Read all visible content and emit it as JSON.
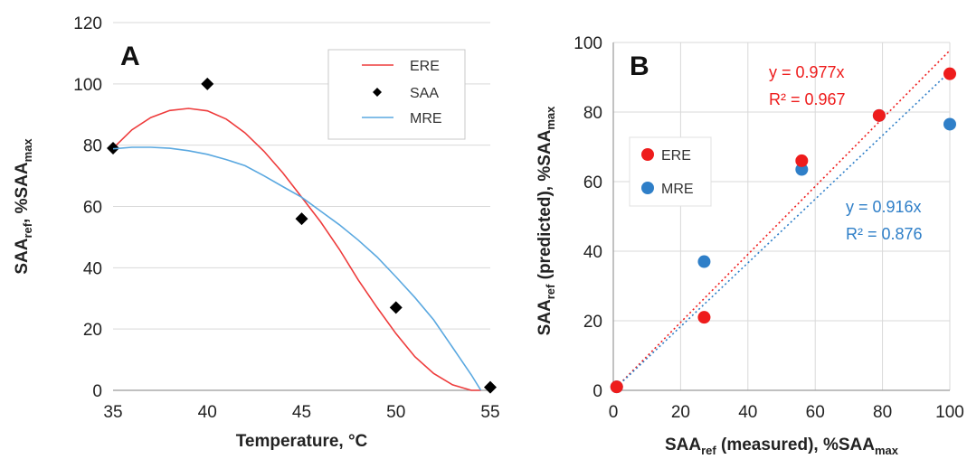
{
  "chart_data": [
    {
      "type": "line",
      "panel_label": "A",
      "xlabel": "Temperature, °C",
      "ylabel": {
        "main": "SAA",
        "sub": "ref",
        "tail": ", %SAA",
        "tail_sub": "max"
      },
      "xlim": [
        35,
        55
      ],
      "ylim": [
        0,
        120
      ],
      "xticks": [
        35,
        40,
        45,
        50,
        55
      ],
      "yticks": [
        0,
        20,
        40,
        60,
        80,
        100,
        120
      ],
      "grid": "horizontal",
      "legend_position": "top-right",
      "series": [
        {
          "name": "ERE",
          "kind": "line",
          "color": "#ee3b3b",
          "x": [
            35,
            36,
            37,
            38,
            39,
            40,
            41,
            42,
            43,
            44,
            45,
            46,
            47,
            48,
            49,
            50,
            51,
            52,
            53,
            54,
            54.5
          ],
          "y": [
            79,
            85,
            89,
            91.3,
            92,
            91.2,
            88.5,
            84,
            78,
            71,
            63,
            55,
            46,
            36,
            27,
            18.5,
            11,
            5.5,
            1.8,
            0,
            0
          ]
        },
        {
          "name": "SAA",
          "kind": "marker",
          "color": "#000000",
          "x": [
            35,
            40,
            45,
            50,
            55
          ],
          "y": [
            79,
            100,
            56,
            27,
            1
          ]
        },
        {
          "name": "MRE",
          "kind": "line",
          "color": "#5aa8e0",
          "x": [
            35,
            36,
            37,
            38,
            39,
            40,
            41,
            42,
            43,
            44,
            45,
            46,
            47,
            48,
            49,
            50,
            51,
            52,
            53,
            54,
            54.5
          ],
          "y": [
            78.8,
            79.3,
            79.3,
            79,
            78.2,
            77,
            75.3,
            73.3,
            70,
            66.5,
            63,
            58.5,
            54,
            49,
            43.5,
            37,
            30.3,
            23,
            14,
            5,
            0
          ]
        }
      ]
    },
    {
      "type": "scatter",
      "panel_label": "B",
      "xlabel": {
        "main": "SAA",
        "sub": "ref",
        "tail": " (measured), %SAA",
        "tail_sub": "max"
      },
      "ylabel": {
        "main": "SAA",
        "sub": "ref",
        "tail": " (predicted), %SAA",
        "tail_sub": "max"
      },
      "xlim": [
        0,
        100
      ],
      "ylim": [
        0,
        100
      ],
      "xticks": [
        0,
        20,
        40,
        60,
        80,
        100
      ],
      "yticks": [
        0,
        20,
        40,
        60,
        80,
        100
      ],
      "grid": "both",
      "legend_position": "center-left",
      "series": [
        {
          "name": "ERE",
          "color": "#ee1c1c",
          "x": [
            1,
            27,
            56,
            79,
            100
          ],
          "y": [
            1,
            21,
            66,
            79,
            91
          ],
          "trendline_slope": 0.977,
          "equation": "y = 0.977x",
          "r2": "R² = 0.967"
        },
        {
          "name": "MRE",
          "color": "#2f7fc8",
          "x": [
            1,
            27,
            56,
            79,
            100
          ],
          "y": [
            1,
            37,
            63.5,
            79,
            76.5
          ],
          "trendline_slope": 0.916,
          "equation": "y = 0.916x",
          "r2": "R² = 0.876"
        }
      ]
    }
  ]
}
